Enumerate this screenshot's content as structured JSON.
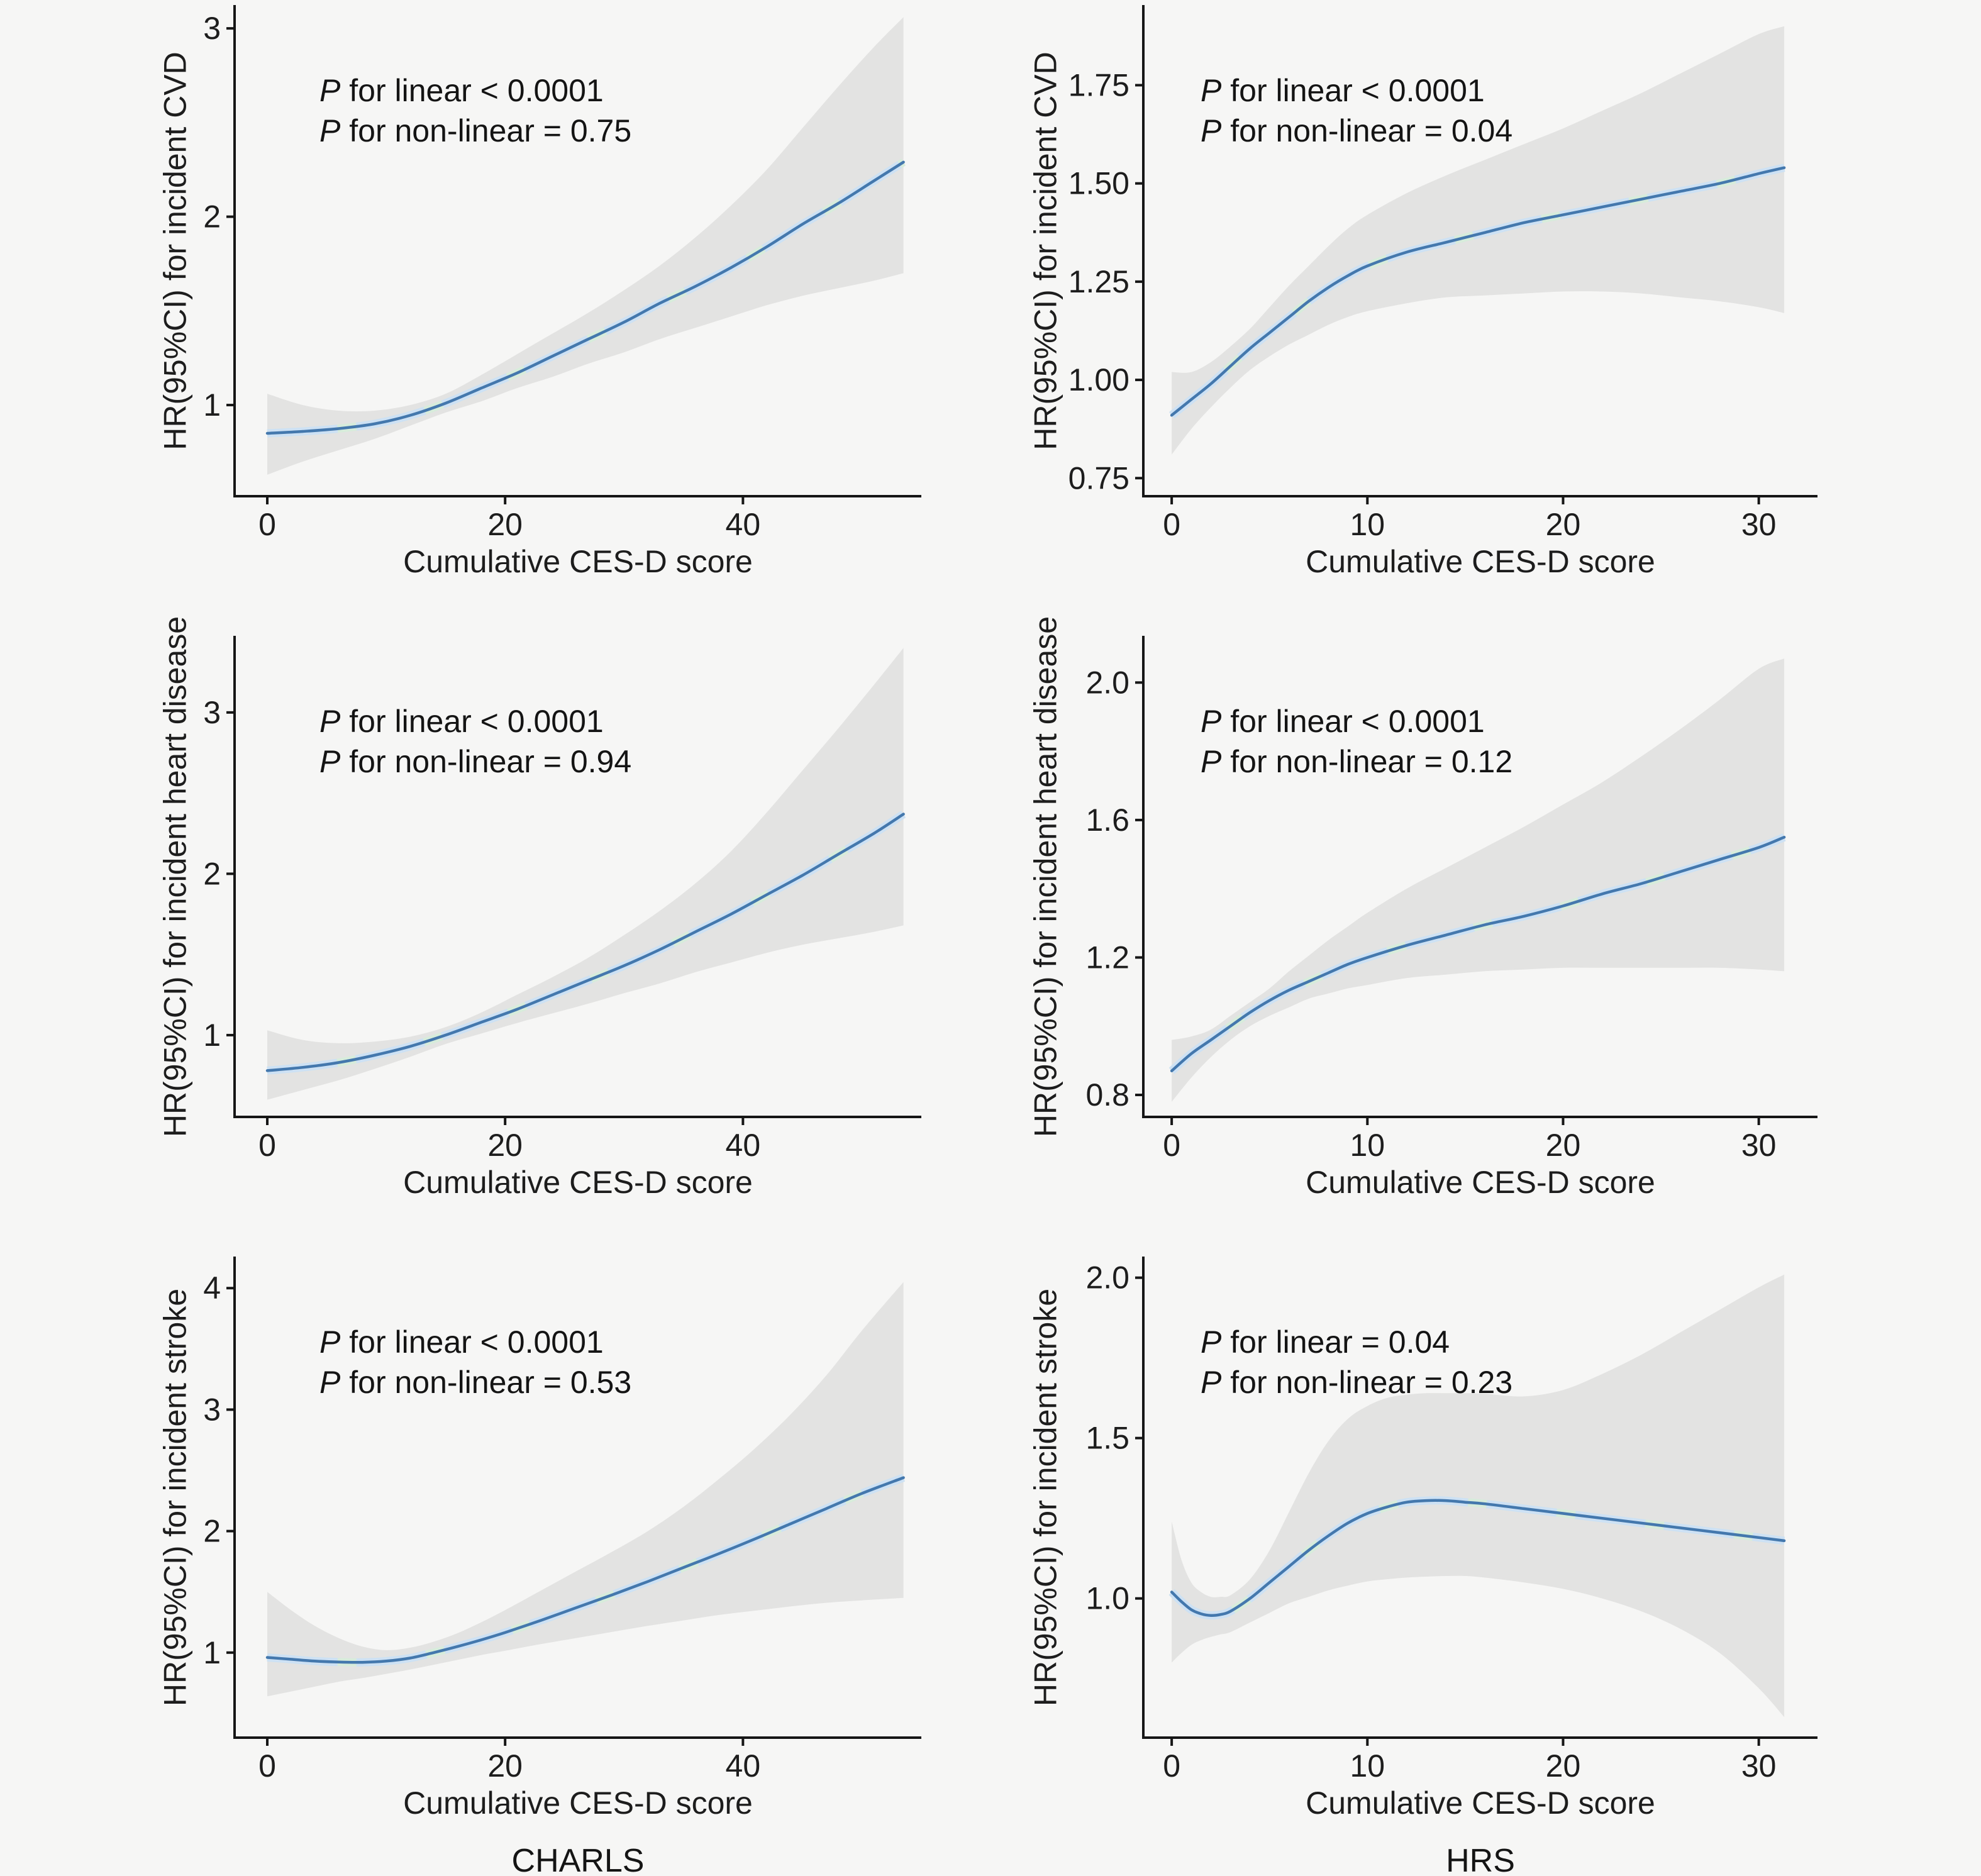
{
  "figure": {
    "xlabel": "Cumulative CES-D score",
    "cohort_labels": [
      "CHARLS",
      "HRS"
    ],
    "colors": {
      "background": "#f6f6f5",
      "ci_band": "#e3e3e2",
      "line": "#4478ad",
      "halo_blue": "#cde1f4",
      "halo_green": "#d7ecdb",
      "axis": "#161616",
      "text": "#1d1d1d"
    }
  },
  "chart_data": [
    {
      "type": "line",
      "id": "charls-cvd",
      "cohort": "CHARLS",
      "outcome": "incident CVD",
      "ylabel": "HR(95%CI) for incident CVD",
      "xlabel": "Cumulative CES-D score",
      "annotations": [
        {
          "italic": "P",
          "text": " for linear < 0.0001"
        },
        {
          "italic": "P",
          "text": " for non-linear = 0.75"
        }
      ],
      "xlim": [
        -2.75,
        55.0
      ],
      "ylim": [
        0.516,
        3.124
      ],
      "xticks": [
        0,
        20,
        40
      ],
      "xtick_labels": [
        "0",
        "20",
        "40"
      ],
      "yticks": [
        1,
        2,
        3
      ],
      "ytick_labels": [
        "1",
        "2",
        "3"
      ],
      "legend": "none",
      "grid": false,
      "series": {
        "x": [
          0,
          3,
          6,
          9,
          12,
          15,
          18,
          21,
          24,
          27,
          30,
          33,
          36,
          39,
          42,
          45,
          48,
          51,
          53.5
        ],
        "hr": [
          0.85,
          0.86,
          0.875,
          0.9,
          0.945,
          1.01,
          1.09,
          1.17,
          1.26,
          1.35,
          1.44,
          1.54,
          1.63,
          1.73,
          1.84,
          1.96,
          2.07,
          2.19,
          2.29
        ],
        "ci_upper": [
          1.06,
          1.0,
          0.97,
          0.97,
          1.0,
          1.06,
          1.16,
          1.27,
          1.38,
          1.49,
          1.61,
          1.74,
          1.89,
          2.06,
          2.25,
          2.47,
          2.69,
          2.9,
          3.06
        ],
        "ci_lower": [
          0.63,
          0.7,
          0.76,
          0.82,
          0.89,
          0.96,
          1.02,
          1.09,
          1.15,
          1.22,
          1.28,
          1.35,
          1.41,
          1.47,
          1.53,
          1.58,
          1.62,
          1.66,
          1.7
        ]
      }
    },
    {
      "type": "line",
      "id": "hrs-cvd",
      "cohort": "HRS",
      "outcome": "incident CVD",
      "ylabel": "HR(95%CI) for incident CVD",
      "xlabel": "Cumulative CES-D score",
      "annotations": [
        {
          "italic": "P",
          "text": " for linear < 0.0001"
        },
        {
          "italic": "P",
          "text": " for non-linear = 0.04"
        }
      ],
      "xlim": [
        -1.45,
        33.0
      ],
      "ylim": [
        0.704,
        1.954
      ],
      "xticks": [
        0,
        10,
        20,
        30
      ],
      "xtick_labels": [
        "0",
        "10",
        "20",
        "30"
      ],
      "yticks": [
        0.75,
        1.0,
        1.25,
        1.5,
        1.75
      ],
      "ytick_labels": [
        "0.75",
        "1.00",
        "1.25",
        "1.50",
        "1.75"
      ],
      "legend": "none",
      "grid": false,
      "series": {
        "x": [
          0,
          1,
          2,
          3,
          4,
          5,
          6,
          7,
          8,
          9,
          10,
          12,
          14,
          16,
          18,
          20,
          22,
          24,
          26,
          28,
          30,
          31.3
        ],
        "hr": [
          0.91,
          0.95,
          0.99,
          1.035,
          1.08,
          1.12,
          1.16,
          1.2,
          1.235,
          1.265,
          1.29,
          1.325,
          1.35,
          1.375,
          1.4,
          1.42,
          1.44,
          1.46,
          1.48,
          1.5,
          1.525,
          1.54
        ],
        "ci_upper": [
          1.02,
          1.02,
          1.045,
          1.085,
          1.13,
          1.185,
          1.24,
          1.29,
          1.34,
          1.385,
          1.42,
          1.475,
          1.52,
          1.56,
          1.6,
          1.64,
          1.685,
          1.73,
          1.78,
          1.83,
          1.88,
          1.9
        ],
        "ci_lower": [
          0.81,
          0.875,
          0.93,
          0.98,
          1.025,
          1.06,
          1.09,
          1.115,
          1.14,
          1.16,
          1.175,
          1.195,
          1.21,
          1.215,
          1.22,
          1.225,
          1.225,
          1.22,
          1.21,
          1.2,
          1.185,
          1.17
        ]
      }
    },
    {
      "type": "line",
      "id": "charls-heart-disease",
      "cohort": "CHARLS",
      "outcome": "incident heart disease",
      "ylabel": "HR(95%CI) for incident heart disease",
      "xlabel": "Cumulative CES-D score",
      "annotations": [
        {
          "italic": "P",
          "text": " for linear < 0.0001"
        },
        {
          "italic": "P",
          "text": " for non-linear = 0.94"
        }
      ],
      "xlim": [
        -2.75,
        55.0
      ],
      "ylim": [
        0.493,
        3.475
      ],
      "xticks": [
        0,
        20,
        40
      ],
      "xtick_labels": [
        "0",
        "20",
        "40"
      ],
      "yticks": [
        1,
        2,
        3
      ],
      "ytick_labels": [
        "1",
        "2",
        "3"
      ],
      "legend": "none",
      "grid": false,
      "series": {
        "x": [
          0,
          3,
          6,
          9,
          12,
          15,
          18,
          21,
          24,
          27,
          30,
          33,
          36,
          39,
          42,
          45,
          48,
          51,
          53.5
        ],
        "hr": [
          0.78,
          0.8,
          0.83,
          0.875,
          0.93,
          1.0,
          1.08,
          1.16,
          1.25,
          1.34,
          1.43,
          1.53,
          1.64,
          1.75,
          1.87,
          1.99,
          2.12,
          2.25,
          2.37
        ],
        "ci_upper": [
          1.03,
          0.97,
          0.95,
          0.96,
          0.99,
          1.05,
          1.14,
          1.25,
          1.36,
          1.48,
          1.62,
          1.77,
          1.94,
          2.14,
          2.38,
          2.64,
          2.9,
          3.17,
          3.4
        ],
        "ci_lower": [
          0.6,
          0.66,
          0.72,
          0.79,
          0.865,
          0.945,
          1.01,
          1.075,
          1.135,
          1.195,
          1.26,
          1.32,
          1.39,
          1.45,
          1.51,
          1.56,
          1.6,
          1.64,
          1.68
        ]
      }
    },
    {
      "type": "line",
      "id": "hrs-heart-disease",
      "cohort": "HRS",
      "outcome": "incident heart disease",
      "ylabel": "HR(95%CI) for incident heart disease",
      "xlabel": "Cumulative CES-D score",
      "annotations": [
        {
          "italic": "P",
          "text": " for linear < 0.0001"
        },
        {
          "italic": "P",
          "text": " for non-linear = 0.12"
        }
      ],
      "xlim": [
        -1.45,
        33.0
      ],
      "ylim": [
        0.736,
        2.136
      ],
      "xticks": [
        0,
        10,
        20,
        30
      ],
      "xtick_labels": [
        "0",
        "10",
        "20",
        "30"
      ],
      "yticks": [
        0.8,
        1.2,
        1.6,
        2.0
      ],
      "ytick_labels": [
        "0.8",
        "1.2",
        "1.6",
        "2.0"
      ],
      "legend": "none",
      "grid": false,
      "series": {
        "x": [
          0,
          1,
          2,
          3,
          4,
          5,
          6,
          7,
          8,
          9,
          10,
          12,
          14,
          16,
          18,
          20,
          22,
          24,
          26,
          28,
          30,
          31.3
        ],
        "hr": [
          0.87,
          0.92,
          0.96,
          1.0,
          1.04,
          1.075,
          1.105,
          1.13,
          1.155,
          1.18,
          1.2,
          1.235,
          1.265,
          1.295,
          1.32,
          1.35,
          1.385,
          1.415,
          1.45,
          1.485,
          1.52,
          1.55
        ],
        "ci_upper": [
          0.96,
          0.97,
          0.99,
          1.03,
          1.07,
          1.11,
          1.16,
          1.205,
          1.25,
          1.29,
          1.33,
          1.4,
          1.46,
          1.52,
          1.58,
          1.645,
          1.71,
          1.785,
          1.865,
          1.95,
          2.04,
          2.07
        ],
        "ci_lower": [
          0.78,
          0.85,
          0.91,
          0.96,
          1.0,
          1.03,
          1.055,
          1.08,
          1.095,
          1.11,
          1.12,
          1.14,
          1.15,
          1.16,
          1.165,
          1.17,
          1.17,
          1.17,
          1.17,
          1.17,
          1.165,
          1.16
        ]
      }
    },
    {
      "type": "line",
      "id": "charls-stroke",
      "cohort": "CHARLS",
      "outcome": "incident stroke",
      "ylabel": "HR(95%CI) for incident stroke",
      "xlabel": "Cumulative CES-D score",
      "annotations": [
        {
          "italic": "P",
          "text": " for linear < 0.0001"
        },
        {
          "italic": "P",
          "text": " for non-linear = 0.53"
        }
      ],
      "xlim": [
        -2.75,
        55.0
      ],
      "ylim": [
        0.3,
        4.26
      ],
      "xticks": [
        0,
        20,
        40
      ],
      "xtick_labels": [
        "0",
        "20",
        "40"
      ],
      "yticks": [
        1,
        2,
        3,
        4
      ],
      "ytick_labels": [
        "1",
        "2",
        "3",
        "4"
      ],
      "legend": "none",
      "grid": false,
      "series": {
        "x": [
          0,
          2,
          4,
          6,
          8,
          10,
          12,
          14,
          16,
          18,
          20,
          23,
          26,
          29,
          32,
          35,
          38,
          41,
          44,
          47,
          50,
          53.5
        ],
        "hr": [
          0.96,
          0.945,
          0.93,
          0.922,
          0.92,
          0.93,
          0.955,
          1.0,
          1.05,
          1.105,
          1.165,
          1.265,
          1.37,
          1.475,
          1.585,
          1.7,
          1.815,
          1.935,
          2.06,
          2.185,
          2.31,
          2.44
        ],
        "ci_upper": [
          1.5,
          1.35,
          1.22,
          1.12,
          1.05,
          1.02,
          1.04,
          1.09,
          1.16,
          1.25,
          1.35,
          1.51,
          1.67,
          1.83,
          2.0,
          2.2,
          2.43,
          2.68,
          2.96,
          3.28,
          3.65,
          4.05
        ],
        "ci_lower": [
          0.64,
          0.68,
          0.72,
          0.76,
          0.79,
          0.825,
          0.86,
          0.9,
          0.94,
          0.98,
          1.015,
          1.07,
          1.12,
          1.17,
          1.22,
          1.265,
          1.31,
          1.345,
          1.38,
          1.41,
          1.43,
          1.45
        ]
      }
    },
    {
      "type": "line",
      "id": "hrs-stroke",
      "cohort": "HRS",
      "outcome": "incident stroke",
      "ylabel": "HR(95%CI) for incident stroke",
      "xlabel": "Cumulative CES-D score",
      "annotations": [
        {
          "italic": "P",
          "text": " for linear = 0.04"
        },
        {
          "italic": "P",
          "text": " for non-linear = 0.23"
        }
      ],
      "xlim": [
        -1.45,
        33.0
      ],
      "ylim": [
        0.566,
        2.066
      ],
      "xticks": [
        0,
        10,
        20,
        30
      ],
      "xtick_labels": [
        "0",
        "10",
        "20",
        "30"
      ],
      "yticks": [
        1.0,
        1.5,
        2.0
      ],
      "ytick_labels": [
        "1.0",
        "1.5",
        "2.0"
      ],
      "legend": "none",
      "grid": false,
      "series": {
        "x": [
          0,
          0.5,
          1,
          1.5,
          2,
          2.5,
          3,
          4,
          5,
          6,
          7,
          8,
          9,
          10,
          11,
          12,
          13,
          14,
          15,
          16,
          18,
          20,
          22,
          24,
          26,
          28,
          30,
          31.3
        ],
        "hr": [
          1.02,
          0.99,
          0.965,
          0.952,
          0.947,
          0.95,
          0.96,
          1.0,
          1.05,
          1.1,
          1.15,
          1.195,
          1.235,
          1.265,
          1.285,
          1.3,
          1.305,
          1.305,
          1.3,
          1.295,
          1.28,
          1.265,
          1.25,
          1.235,
          1.22,
          1.205,
          1.19,
          1.18
        ],
        "ci_upper": [
          1.24,
          1.12,
          1.05,
          1.02,
          1.005,
          1.005,
          1.01,
          1.06,
          1.15,
          1.27,
          1.39,
          1.49,
          1.56,
          1.6,
          1.625,
          1.635,
          1.64,
          1.64,
          1.64,
          1.638,
          1.63,
          1.65,
          1.7,
          1.76,
          1.83,
          1.9,
          1.97,
          2.01
        ],
        "ci_lower": [
          0.8,
          0.83,
          0.855,
          0.87,
          0.88,
          0.888,
          0.895,
          0.925,
          0.955,
          0.985,
          1.005,
          1.025,
          1.04,
          1.053,
          1.06,
          1.065,
          1.068,
          1.07,
          1.07,
          1.065,
          1.05,
          1.03,
          1.0,
          0.96,
          0.905,
          0.83,
          0.72,
          0.63
        ]
      }
    }
  ]
}
